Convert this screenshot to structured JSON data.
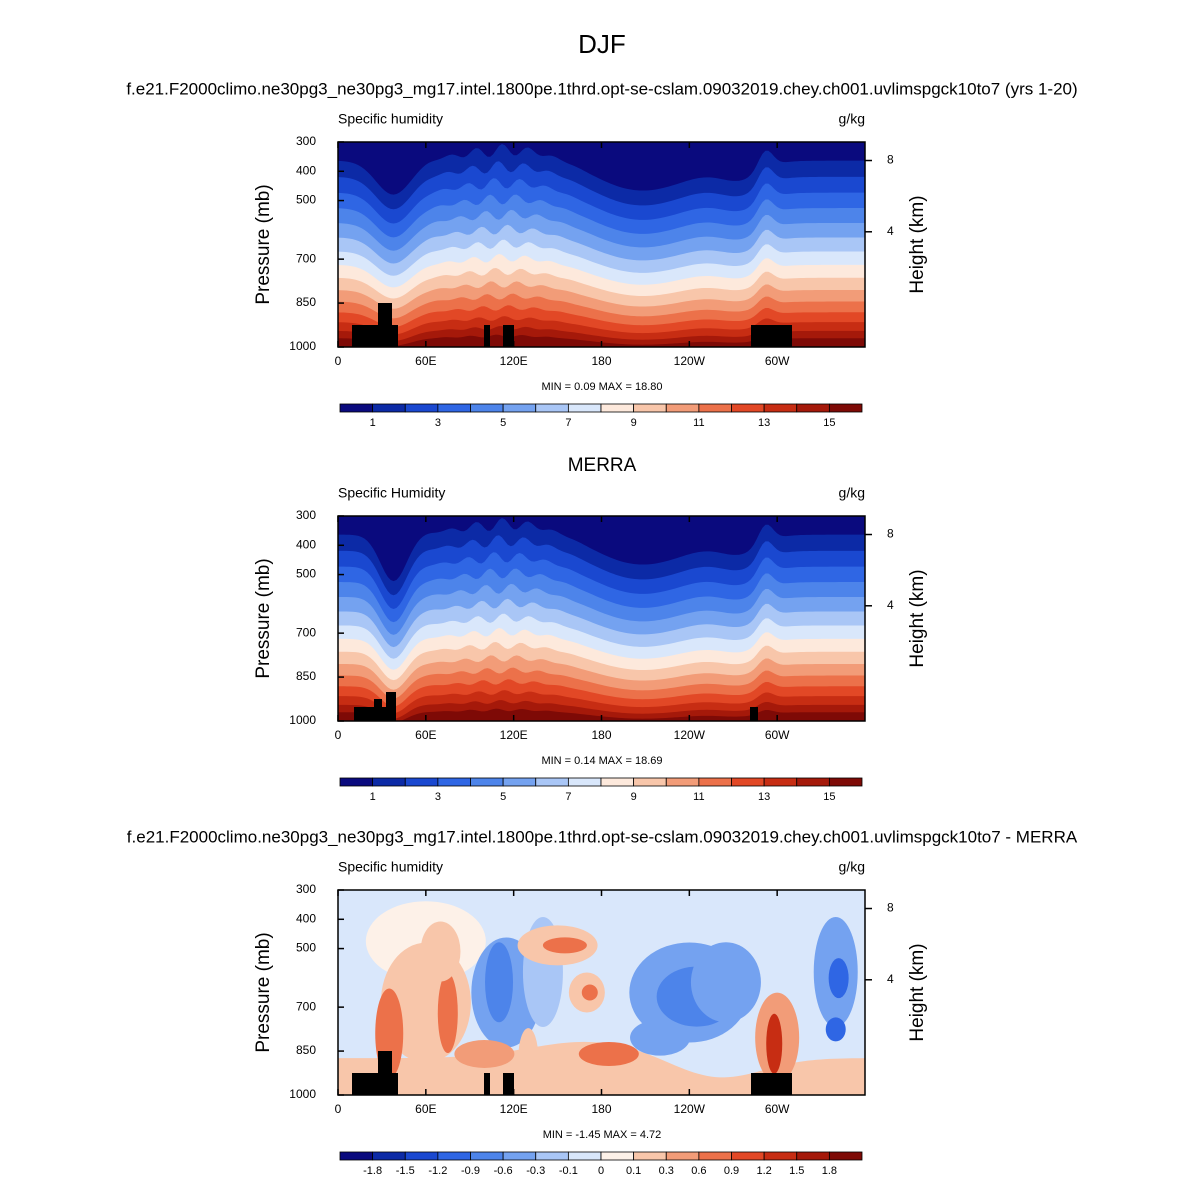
{
  "title": "DJF",
  "panels": [
    {
      "type": "contour",
      "heading": "f.e21.F2000climo.ne30pg3_ne30pg3_mg17.intel.1800pe.1thrd.opt-se-cslam.09032019.chey.ch001.uvlimspgck10to7 (yrs 1-20)",
      "left_label": "Specific humidity",
      "right_label": "g/kg",
      "ylabel": "Pressure (mb)",
      "y2label": "Height (km)",
      "xlim": [
        0,
        360
      ],
      "ylim": [
        1000,
        300
      ],
      "xticks": [
        0,
        {
          "value": 60,
          "label": "60E"
        },
        {
          "value": 120,
          "label": "120E"
        },
        180,
        {
          "value": 240,
          "label": "120W"
        },
        {
          "value": 300,
          "label": "60W"
        }
      ],
      "yticks": [
        300,
        400,
        500,
        700,
        850,
        1000
      ],
      "y2ticks": [
        8,
        4
      ],
      "stats": "MIN =   0.09  MAX =  18.80",
      "colorbar": {
        "colors": [
          "#0a0a7e",
          "#0c2aa6",
          "#1a48d0",
          "#2f66e4",
          "#4d84ea",
          "#74a2f0",
          "#a9c6f6",
          "#d9e7fb",
          "#fde9dc",
          "#f8c6aa",
          "#f29c78",
          "#ec714a",
          "#e24826",
          "#c72d13",
          "#a5190a",
          "#7e0a06"
        ],
        "lim": [
          0,
          16
        ],
        "ticks": [
          1,
          3,
          5,
          7,
          9,
          11,
          13,
          15
        ]
      }
    },
    {
      "type": "contour",
      "heading": "MERRA",
      "left_label": "Specific Humidity",
      "right_label": "g/kg",
      "ylabel": "Pressure (mb)",
      "y2label": "Height (km)",
      "xlim": [
        0,
        360
      ],
      "ylim": [
        1000,
        300
      ],
      "xticks": [
        0,
        {
          "value": 60,
          "label": "60E"
        },
        {
          "value": 120,
          "label": "120E"
        },
        180,
        {
          "value": 240,
          "label": "120W"
        },
        {
          "value": 300,
          "label": "60W"
        }
      ],
      "yticks": [
        300,
        400,
        500,
        700,
        850,
        1000
      ],
      "y2ticks": [
        8,
        4
      ],
      "stats": "MIN =   0.14  MAX =  18.69",
      "colorbar": {
        "colors": [
          "#0a0a7e",
          "#0c2aa6",
          "#1a48d0",
          "#2f66e4",
          "#4d84ea",
          "#74a2f0",
          "#a9c6f6",
          "#d9e7fb",
          "#fde9dc",
          "#f8c6aa",
          "#f29c78",
          "#ec714a",
          "#e24826",
          "#c72d13",
          "#a5190a",
          "#7e0a06"
        ],
        "lim": [
          0,
          16
        ],
        "ticks": [
          1,
          3,
          5,
          7,
          9,
          11,
          13,
          15
        ]
      }
    },
    {
      "type": "contour",
      "heading": "f.e21.F2000climo.ne30pg3_ne30pg3_mg17.intel.1800pe.1thrd.opt-se-cslam.09032019.chey.ch001.uvlimspgck10to7 - MERRA",
      "left_label": "Specific humidity",
      "right_label": "g/kg",
      "ylabel": "Pressure (mb)",
      "y2label": "Height (km)",
      "xlim": [
        0,
        360
      ],
      "ylim": [
        1000,
        300
      ],
      "xticks": [
        0,
        {
          "value": 60,
          "label": "60E"
        },
        {
          "value": 120,
          "label": "120E"
        },
        180,
        {
          "value": 240,
          "label": "120W"
        },
        {
          "value": 300,
          "label": "60W"
        }
      ],
      "yticks": [
        300,
        400,
        500,
        700,
        850,
        1000
      ],
      "y2ticks": [
        8,
        4
      ],
      "stats": "MIN =  -1.45  MAX =   4.72",
      "colorbar": {
        "colors": [
          "#0a0a7e",
          "#0c2aa6",
          "#1a48d0",
          "#2f66e4",
          "#4d84ea",
          "#74a2f0",
          "#a9c6f6",
          "#d9e7fb",
          "#fdf1e8",
          "#f8c6aa",
          "#f29c78",
          "#ec714a",
          "#e24826",
          "#c72d13",
          "#a5190a",
          "#7e0a06"
        ],
        "ticks": [
          -1.8,
          -1.5,
          -1.2,
          -0.9,
          -0.6,
          -0.3,
          -0.1,
          0,
          0.1,
          0.3,
          0.6,
          0.9,
          1.2,
          1.5,
          1.8
        ]
      }
    }
  ]
}
